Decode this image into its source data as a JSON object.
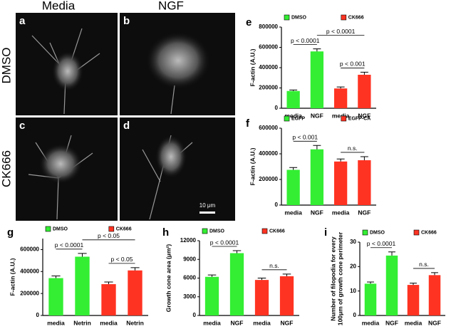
{
  "images": {
    "columns": [
      "Media",
      "NGF"
    ],
    "rows": [
      "DMSO",
      "CK666"
    ],
    "panels": [
      "a",
      "b",
      "c",
      "d"
    ],
    "scale_bar": "10 μm"
  },
  "chart_data": [
    {
      "type": "bar",
      "panel": "e",
      "ylabel": "F-actin (A.U.)",
      "categories": [
        "media",
        "NGF",
        "media",
        "NGF"
      ],
      "series": [
        {
          "name": "DMSO",
          "color": "#33ee33",
          "values": [
            170000,
            560000,
            null,
            null
          ],
          "errors": [
            10000,
            25000,
            null,
            null
          ]
        },
        {
          "name": "CK666",
          "color": "#ff3322",
          "values": [
            null,
            null,
            195000,
            330000
          ],
          "errors": [
            null,
            null,
            15000,
            25000
          ]
        }
      ],
      "ylim": [
        0,
        800000
      ],
      "yticks": [
        0,
        200000,
        400000,
        600000,
        800000
      ],
      "annotations": [
        "p < 0.0001",
        "p < 0.0001",
        "p < 0.001"
      ]
    },
    {
      "type": "bar",
      "panel": "f",
      "ylabel": "F-actin (A.U.)",
      "categories": [
        "media",
        "NGF",
        "media",
        "NGF"
      ],
      "series": [
        {
          "name": "EGFP",
          "color": "#33ee33",
          "values": [
            275000,
            435000,
            null,
            null
          ],
          "errors": [
            18000,
            30000,
            null,
            null
          ]
        },
        {
          "name": "EGFP-CA",
          "color": "#ff3322",
          "values": [
            null,
            null,
            340000,
            350000
          ],
          "errors": [
            null,
            null,
            20000,
            28000
          ]
        }
      ],
      "ylim": [
        0,
        600000
      ],
      "yticks": [
        0,
        200000,
        400000,
        600000
      ],
      "annotations": [
        "p < 0.001",
        "n.s."
      ]
    },
    {
      "type": "bar",
      "panel": "g",
      "ylabel": "F-actin (A.U.)",
      "categories": [
        "media",
        "Netrin",
        "media",
        "Netrin"
      ],
      "series": [
        {
          "name": "DMSO",
          "color": "#33ee33",
          "values": [
            340000,
            535000,
            null,
            null
          ],
          "errors": [
            20000,
            30000,
            null,
            null
          ]
        },
        {
          "name": "CK666",
          "color": "#ff3322",
          "values": [
            null,
            null,
            285000,
            410000
          ],
          "errors": [
            null,
            null,
            20000,
            25000
          ]
        }
      ],
      "ylim": [
        0,
        700000
      ],
      "yticks": [
        0,
        200000,
        400000,
        600000
      ],
      "annotations": [
        "p < 0.0001",
        "p < 0.05",
        "p < 0.05"
      ]
    },
    {
      "type": "bar",
      "panel": "h",
      "ylabel": "Growth cone area (μm²)",
      "categories": [
        "media",
        "NGF",
        "media",
        "NGF"
      ],
      "series": [
        {
          "name": "DMSO",
          "color": "#33ee33",
          "values": [
            6200,
            10000,
            null,
            null
          ],
          "errors": [
            300,
            400,
            null,
            null
          ]
        },
        {
          "name": "CK666",
          "color": "#ff3322",
          "values": [
            null,
            null,
            5700,
            6300
          ],
          "errors": [
            null,
            null,
            300,
            350
          ]
        }
      ],
      "ylim": [
        0,
        12000
      ],
      "yticks": [
        0,
        3000,
        6000,
        9000,
        12000
      ],
      "annotations": [
        "p < 0.0001",
        "n.s."
      ]
    },
    {
      "type": "bar",
      "panel": "i",
      "ylabel": [
        "Number of filopodia for every",
        "100μm of growth cone perimeter"
      ],
      "categories": [
        "media",
        "NGF",
        "media",
        "NGF"
      ],
      "series": [
        {
          "name": "DMSO",
          "color": "#33ee33",
          "values": [
            13,
            24.5,
            null,
            null
          ],
          "errors": [
            0.7,
            1.5,
            null,
            null
          ]
        },
        {
          "name": "CK666",
          "color": "#ff3322",
          "values": [
            null,
            null,
            12.5,
            16.5
          ],
          "errors": [
            null,
            null,
            0.7,
            1
          ]
        }
      ],
      "ylim": [
        0,
        30
      ],
      "yticks": [
        0,
        10,
        20,
        30
      ],
      "annotations": [
        "p < 0.0001",
        "n.s."
      ]
    }
  ]
}
